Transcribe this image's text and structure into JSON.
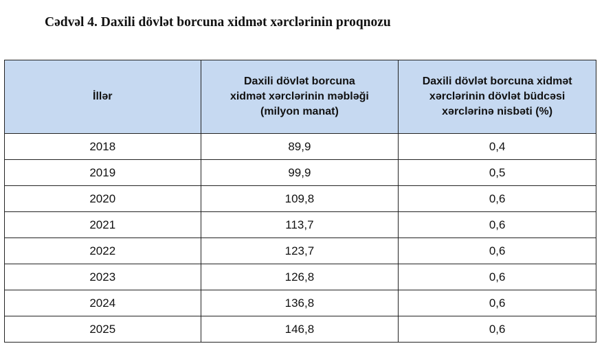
{
  "title": "Cədvəl 4. Daxili dövlət borcuna xidmət xərclərinin proqnozu",
  "table": {
    "headers": [
      "İllər",
      "Daxili dövlət borcuna xidmət xərclərinin məbləği (milyon manat)",
      "Daxili dövlət borcuna xidmət xərclərinin dövlət büdcəsi xərclərinə nisbəti (%)"
    ],
    "rows": [
      [
        "2018",
        "89,9",
        "0,4"
      ],
      [
        "2019",
        "99,9",
        "0,5"
      ],
      [
        "2020",
        "109,8",
        "0,6"
      ],
      [
        "2021",
        "113,7",
        "0,6"
      ],
      [
        "2022",
        "123,7",
        "0,6"
      ],
      [
        "2023",
        "126,8",
        "0,6"
      ],
      [
        "2024",
        "136,8",
        "0,6"
      ],
      [
        "2025",
        "146,8",
        "0,6"
      ]
    ]
  },
  "colors": {
    "header_bg": "#c6d9f1"
  }
}
